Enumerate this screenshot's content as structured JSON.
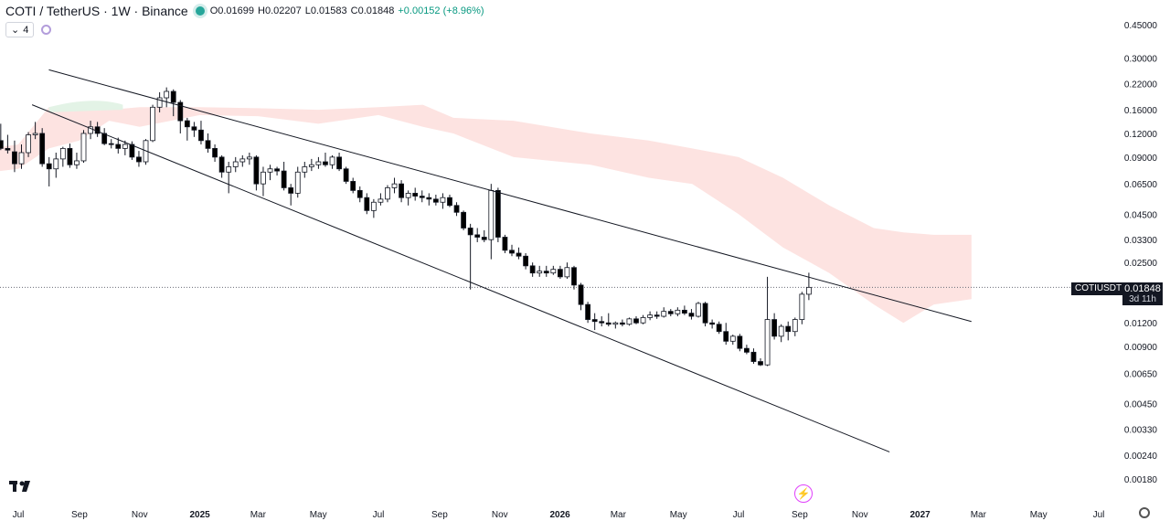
{
  "header": {
    "symbol": "COTI / TetherUS · 1W · Binance",
    "open": "O0.01699",
    "high": "H0.02207",
    "low": "L0.01583",
    "close": "C0.01848",
    "change": "+0.00152 (+8.96%)",
    "indicator_count": "4"
  },
  "price_label": {
    "ticker": "COTIUSDT",
    "price": "0.01848",
    "countdown": "3d 11h"
  },
  "colors": {
    "up_candle": "#ffffff",
    "down_candle": "#000000",
    "cloud_bearish": "#fde3e1",
    "cloud_bullish": "#e3f3e6",
    "trendline": "#131722"
  },
  "icons": [
    "tradingview-logo-icon",
    "indicator-toggle-icon",
    "flash-icon",
    "settings-icon"
  ],
  "chart_data": {
    "type": "candlestick",
    "scale": "log",
    "y_ticks": [
      0.45,
      0.3,
      0.22,
      0.16,
      0.12,
      0.09,
      0.065,
      0.045,
      0.033,
      0.025,
      0.012,
      0.009,
      0.0065,
      0.0045,
      0.0033,
      0.0024,
      0.0018
    ],
    "y_tick_labels": [
      "0.45000",
      "0.30000",
      "0.22000",
      "0.16000",
      "0.12000",
      "0.09000",
      "0.06500",
      "0.04500",
      "0.03300",
      "0.02500",
      "0.01200",
      "0.00900",
      "0.00650",
      "0.00450",
      "0.00330",
      "0.00240",
      "0.00180"
    ],
    "x_labels": [
      {
        "label": "Jul",
        "date": "2024-07-01"
      },
      {
        "label": "Sep",
        "date": "2024-09-01"
      },
      {
        "label": "Nov",
        "date": "2024-11-01"
      },
      {
        "label": "2025",
        "date": "2025-01-01"
      },
      {
        "label": "Mar",
        "date": "2025-03-01"
      },
      {
        "label": "May",
        "date": "2025-05-01"
      },
      {
        "label": "Jul",
        "date": "2025-07-01"
      },
      {
        "label": "Sep",
        "date": "2025-09-01"
      },
      {
        "label": "Nov",
        "date": "2025-11-01"
      },
      {
        "label": "2026",
        "date": "2026-01-01"
      },
      {
        "label": "Mar",
        "date": "2026-03-01"
      },
      {
        "label": "May",
        "date": "2026-05-01"
      },
      {
        "label": "Jul",
        "date": "2026-07-01"
      },
      {
        "label": "Sep",
        "date": "2026-09-01"
      },
      {
        "label": "Nov",
        "date": "2026-11-01"
      },
      {
        "label": "2027",
        "date": "2027-01-01"
      },
      {
        "label": "Mar",
        "date": "2027-03-01"
      },
      {
        "label": "May",
        "date": "2027-05-01"
      },
      {
        "label": "Jul",
        "date": "2027-07-01"
      }
    ],
    "candles": [
      {
        "d": "2024-06-10",
        "o": 0.11,
        "h": 0.135,
        "l": 0.098,
        "c": 0.1
      },
      {
        "d": "2024-06-17",
        "o": 0.1,
        "h": 0.118,
        "l": 0.094,
        "c": 0.098
      },
      {
        "d": "2024-06-24",
        "o": 0.096,
        "h": 0.11,
        "l": 0.075,
        "c": 0.083
      },
      {
        "d": "2024-07-01",
        "o": 0.083,
        "h": 0.105,
        "l": 0.078,
        "c": 0.095
      },
      {
        "d": "2024-07-08",
        "o": 0.095,
        "h": 0.122,
        "l": 0.09,
        "c": 0.118
      },
      {
        "d": "2024-07-15",
        "o": 0.118,
        "h": 0.138,
        "l": 0.112,
        "c": 0.12
      },
      {
        "d": "2024-07-22",
        "o": 0.12,
        "h": 0.128,
        "l": 0.08,
        "c": 0.083
      },
      {
        "d": "2024-07-29",
        "o": 0.083,
        "h": 0.09,
        "l": 0.063,
        "c": 0.078
      },
      {
        "d": "2024-08-05",
        "o": 0.078,
        "h": 0.095,
        "l": 0.07,
        "c": 0.088
      },
      {
        "d": "2024-08-12",
        "o": 0.088,
        "h": 0.102,
        "l": 0.08,
        "c": 0.1
      },
      {
        "d": "2024-08-19",
        "o": 0.1,
        "h": 0.106,
        "l": 0.079,
        "c": 0.082
      },
      {
        "d": "2024-08-26",
        "o": 0.082,
        "h": 0.095,
        "l": 0.078,
        "c": 0.086
      },
      {
        "d": "2024-09-02",
        "o": 0.086,
        "h": 0.125,
        "l": 0.084,
        "c": 0.12
      },
      {
        "d": "2024-09-09",
        "o": 0.12,
        "h": 0.14,
        "l": 0.112,
        "c": 0.13
      },
      {
        "d": "2024-09-16",
        "o": 0.13,
        "h": 0.138,
        "l": 0.115,
        "c": 0.12
      },
      {
        "d": "2024-09-23",
        "o": 0.12,
        "h": 0.128,
        "l": 0.104,
        "c": 0.106
      },
      {
        "d": "2024-09-30",
        "o": 0.106,
        "h": 0.112,
        "l": 0.1,
        "c": 0.105
      },
      {
        "d": "2024-10-07",
        "o": 0.105,
        "h": 0.114,
        "l": 0.094,
        "c": 0.1
      },
      {
        "d": "2024-10-14",
        "o": 0.1,
        "h": 0.11,
        "l": 0.092,
        "c": 0.105
      },
      {
        "d": "2024-10-21",
        "o": 0.105,
        "h": 0.109,
        "l": 0.087,
        "c": 0.09
      },
      {
        "d": "2024-10-28",
        "o": 0.09,
        "h": 0.097,
        "l": 0.08,
        "c": 0.085
      },
      {
        "d": "2024-11-04",
        "o": 0.085,
        "h": 0.112,
        "l": 0.082,
        "c": 0.11
      },
      {
        "d": "2024-11-11",
        "o": 0.11,
        "h": 0.17,
        "l": 0.108,
        "c": 0.165
      },
      {
        "d": "2024-11-18",
        "o": 0.165,
        "h": 0.198,
        "l": 0.155,
        "c": 0.185
      },
      {
        "d": "2024-11-25",
        "o": 0.185,
        "h": 0.21,
        "l": 0.165,
        "c": 0.2
      },
      {
        "d": "2024-12-02",
        "o": 0.2,
        "h": 0.205,
        "l": 0.148,
        "c": 0.175
      },
      {
        "d": "2024-12-09",
        "o": 0.175,
        "h": 0.18,
        "l": 0.12,
        "c": 0.14
      },
      {
        "d": "2024-12-16",
        "o": 0.14,
        "h": 0.145,
        "l": 0.11,
        "c": 0.13
      },
      {
        "d": "2024-12-23",
        "o": 0.13,
        "h": 0.138,
        "l": 0.115,
        "c": 0.125
      },
      {
        "d": "2024-12-30",
        "o": 0.125,
        "h": 0.14,
        "l": 0.105,
        "c": 0.11
      },
      {
        "d": "2025-01-06",
        "o": 0.11,
        "h": 0.12,
        "l": 0.095,
        "c": 0.1
      },
      {
        "d": "2025-01-13",
        "o": 0.1,
        "h": 0.105,
        "l": 0.085,
        "c": 0.09
      },
      {
        "d": "2025-01-20",
        "o": 0.09,
        "h": 0.092,
        "l": 0.07,
        "c": 0.075
      },
      {
        "d": "2025-01-27",
        "o": 0.075,
        "h": 0.085,
        "l": 0.058,
        "c": 0.08
      },
      {
        "d": "2025-02-03",
        "o": 0.08,
        "h": 0.09,
        "l": 0.075,
        "c": 0.085
      },
      {
        "d": "2025-02-10",
        "o": 0.085,
        "h": 0.092,
        "l": 0.08,
        "c": 0.088
      },
      {
        "d": "2025-02-17",
        "o": 0.088,
        "h": 0.095,
        "l": 0.082,
        "c": 0.09
      },
      {
        "d": "2025-02-24",
        "o": 0.09,
        "h": 0.092,
        "l": 0.06,
        "c": 0.065
      },
      {
        "d": "2025-03-03",
        "o": 0.065,
        "h": 0.08,
        "l": 0.056,
        "c": 0.075
      },
      {
        "d": "2025-03-10",
        "o": 0.075,
        "h": 0.082,
        "l": 0.068,
        "c": 0.078
      },
      {
        "d": "2025-03-17",
        "o": 0.078,
        "h": 0.08,
        "l": 0.072,
        "c": 0.076
      },
      {
        "d": "2025-03-24",
        "o": 0.076,
        "h": 0.085,
        "l": 0.06,
        "c": 0.062
      },
      {
        "d": "2025-03-31",
        "o": 0.062,
        "h": 0.065,
        "l": 0.05,
        "c": 0.058
      },
      {
        "d": "2025-04-07",
        "o": 0.058,
        "h": 0.08,
        "l": 0.055,
        "c": 0.075
      },
      {
        "d": "2025-04-14",
        "o": 0.075,
        "h": 0.085,
        "l": 0.07,
        "c": 0.08
      },
      {
        "d": "2025-04-21",
        "o": 0.08,
        "h": 0.088,
        "l": 0.076,
        "c": 0.082
      },
      {
        "d": "2025-04-28",
        "o": 0.082,
        "h": 0.09,
        "l": 0.078,
        "c": 0.085
      },
      {
        "d": "2025-05-05",
        "o": 0.085,
        "h": 0.095,
        "l": 0.08,
        "c": 0.082
      },
      {
        "d": "2025-05-12",
        "o": 0.082,
        "h": 0.092,
        "l": 0.078,
        "c": 0.09
      },
      {
        "d": "2025-05-19",
        "o": 0.09,
        "h": 0.095,
        "l": 0.076,
        "c": 0.078
      },
      {
        "d": "2025-05-26",
        "o": 0.078,
        "h": 0.08,
        "l": 0.065,
        "c": 0.067
      },
      {
        "d": "2025-06-02",
        "o": 0.067,
        "h": 0.07,
        "l": 0.058,
        "c": 0.06
      },
      {
        "d": "2025-06-09",
        "o": 0.06,
        "h": 0.063,
        "l": 0.052,
        "c": 0.055
      },
      {
        "d": "2025-06-16",
        "o": 0.055,
        "h": 0.058,
        "l": 0.045,
        "c": 0.047
      },
      {
        "d": "2025-06-23",
        "o": 0.047,
        "h": 0.054,
        "l": 0.043,
        "c": 0.052
      },
      {
        "d": "2025-06-30",
        "o": 0.052,
        "h": 0.058,
        "l": 0.05,
        "c": 0.054
      },
      {
        "d": "2025-07-07",
        "o": 0.054,
        "h": 0.064,
        "l": 0.052,
        "c": 0.062
      },
      {
        "d": "2025-07-14",
        "o": 0.062,
        "h": 0.07,
        "l": 0.058,
        "c": 0.065
      },
      {
        "d": "2025-07-21",
        "o": 0.065,
        "h": 0.068,
        "l": 0.052,
        "c": 0.055
      },
      {
        "d": "2025-07-28",
        "o": 0.055,
        "h": 0.06,
        "l": 0.05,
        "c": 0.058
      },
      {
        "d": "2025-08-04",
        "o": 0.058,
        "h": 0.062,
        "l": 0.053,
        "c": 0.056
      },
      {
        "d": "2025-08-11",
        "o": 0.056,
        "h": 0.06,
        "l": 0.052,
        "c": 0.055
      },
      {
        "d": "2025-08-18",
        "o": 0.055,
        "h": 0.058,
        "l": 0.05,
        "c": 0.054
      },
      {
        "d": "2025-08-25",
        "o": 0.054,
        "h": 0.057,
        "l": 0.05,
        "c": 0.052
      },
      {
        "d": "2025-09-01",
        "o": 0.052,
        "h": 0.058,
        "l": 0.048,
        "c": 0.055
      },
      {
        "d": "2025-09-08",
        "o": 0.055,
        "h": 0.057,
        "l": 0.049,
        "c": 0.05
      },
      {
        "d": "2025-09-15",
        "o": 0.05,
        "h": 0.052,
        "l": 0.044,
        "c": 0.046
      },
      {
        "d": "2025-09-22",
        "o": 0.046,
        "h": 0.047,
        "l": 0.037,
        "c": 0.038
      },
      {
        "d": "2025-09-29",
        "o": 0.038,
        "h": 0.04,
        "l": 0.018,
        "c": 0.035
      },
      {
        "d": "2025-10-06",
        "o": 0.035,
        "h": 0.038,
        "l": 0.032,
        "c": 0.034
      },
      {
        "d": "2025-10-13",
        "o": 0.034,
        "h": 0.037,
        "l": 0.032,
        "c": 0.033
      },
      {
        "d": "2025-10-20",
        "o": 0.033,
        "h": 0.065,
        "l": 0.026,
        "c": 0.06
      },
      {
        "d": "2025-10-27",
        "o": 0.06,
        "h": 0.062,
        "l": 0.032,
        "c": 0.034
      },
      {
        "d": "2025-11-03",
        "o": 0.034,
        "h": 0.035,
        "l": 0.028,
        "c": 0.029
      },
      {
        "d": "2025-11-10",
        "o": 0.029,
        "h": 0.031,
        "l": 0.027,
        "c": 0.028
      },
      {
        "d": "2025-11-17",
        "o": 0.028,
        "h": 0.03,
        "l": 0.026,
        "c": 0.027
      },
      {
        "d": "2025-11-24",
        "o": 0.027,
        "h": 0.028,
        "l": 0.023,
        "c": 0.024
      },
      {
        "d": "2025-12-01",
        "o": 0.024,
        "h": 0.025,
        "l": 0.021,
        "c": 0.022
      },
      {
        "d": "2025-12-08",
        "o": 0.022,
        "h": 0.024,
        "l": 0.021,
        "c": 0.0225
      },
      {
        "d": "2025-12-15",
        "o": 0.0225,
        "h": 0.024,
        "l": 0.021,
        "c": 0.022
      },
      {
        "d": "2025-12-22",
        "o": 0.022,
        "h": 0.024,
        "l": 0.0215,
        "c": 0.023
      },
      {
        "d": "2025-12-29",
        "o": 0.023,
        "h": 0.024,
        "l": 0.0205,
        "c": 0.021
      },
      {
        "d": "2026-01-05",
        "o": 0.021,
        "h": 0.025,
        "l": 0.0205,
        "c": 0.0235
      },
      {
        "d": "2026-01-12",
        "o": 0.0235,
        "h": 0.024,
        "l": 0.018,
        "c": 0.019
      },
      {
        "d": "2026-01-19",
        "o": 0.019,
        "h": 0.0195,
        "l": 0.014,
        "c": 0.015
      },
      {
        "d": "2026-01-26",
        "o": 0.015,
        "h": 0.0155,
        "l": 0.012,
        "c": 0.0125
      },
      {
        "d": "2026-02-02",
        "o": 0.0125,
        "h": 0.0135,
        "l": 0.011,
        "c": 0.0122
      },
      {
        "d": "2026-02-09",
        "o": 0.0122,
        "h": 0.013,
        "l": 0.0115,
        "c": 0.012
      },
      {
        "d": "2026-02-16",
        "o": 0.012,
        "h": 0.0135,
        "l": 0.0115,
        "c": 0.0118
      },
      {
        "d": "2026-02-23",
        "o": 0.0118,
        "h": 0.0122,
        "l": 0.0112,
        "c": 0.012
      },
      {
        "d": "2026-03-02",
        "o": 0.012,
        "h": 0.0125,
        "l": 0.0115,
        "c": 0.0118
      },
      {
        "d": "2026-03-09",
        "o": 0.0118,
        "h": 0.0128,
        "l": 0.0116,
        "c": 0.0126
      },
      {
        "d": "2026-03-16",
        "o": 0.0126,
        "h": 0.013,
        "l": 0.0118,
        "c": 0.012
      },
      {
        "d": "2026-03-23",
        "o": 0.012,
        "h": 0.0132,
        "l": 0.0118,
        "c": 0.0128
      },
      {
        "d": "2026-03-30",
        "o": 0.0128,
        "h": 0.0138,
        "l": 0.0124,
        "c": 0.0132
      },
      {
        "d": "2026-04-06",
        "o": 0.0132,
        "h": 0.0138,
        "l": 0.0126,
        "c": 0.013
      },
      {
        "d": "2026-04-13",
        "o": 0.013,
        "h": 0.0145,
        "l": 0.0128,
        "c": 0.0138
      },
      {
        "d": "2026-04-20",
        "o": 0.0138,
        "h": 0.0142,
        "l": 0.013,
        "c": 0.0134
      },
      {
        "d": "2026-04-27",
        "o": 0.0134,
        "h": 0.0145,
        "l": 0.013,
        "c": 0.014
      },
      {
        "d": "2026-05-04",
        "o": 0.014,
        "h": 0.0148,
        "l": 0.0132,
        "c": 0.0135
      },
      {
        "d": "2026-05-11",
        "o": 0.0135,
        "h": 0.0142,
        "l": 0.0125,
        "c": 0.013
      },
      {
        "d": "2026-05-18",
        "o": 0.013,
        "h": 0.0155,
        "l": 0.0128,
        "c": 0.0152
      },
      {
        "d": "2026-05-25",
        "o": 0.0152,
        "h": 0.0155,
        "l": 0.0115,
        "c": 0.012
      },
      {
        "d": "2026-06-01",
        "o": 0.012,
        "h": 0.0125,
        "l": 0.0112,
        "c": 0.0118
      },
      {
        "d": "2026-06-08",
        "o": 0.0118,
        "h": 0.0122,
        "l": 0.0105,
        "c": 0.0108
      },
      {
        "d": "2026-06-15",
        "o": 0.0108,
        "h": 0.012,
        "l": 0.0092,
        "c": 0.0096
      },
      {
        "d": "2026-06-22",
        "o": 0.0096,
        "h": 0.0104,
        "l": 0.0092,
        "c": 0.0102
      },
      {
        "d": "2026-06-29",
        "o": 0.0102,
        "h": 0.0105,
        "l": 0.0085,
        "c": 0.0088
      },
      {
        "d": "2026-07-06",
        "o": 0.0088,
        "h": 0.0092,
        "l": 0.0082,
        "c": 0.0084
      },
      {
        "d": "2026-07-13",
        "o": 0.0084,
        "h": 0.0088,
        "l": 0.0073,
        "c": 0.0075
      },
      {
        "d": "2026-07-20",
        "o": 0.0075,
        "h": 0.0078,
        "l": 0.0071,
        "c": 0.0072
      },
      {
        "d": "2026-07-27",
        "o": 0.0072,
        "h": 0.021,
        "l": 0.0071,
        "c": 0.0125
      },
      {
        "d": "2026-08-03",
        "o": 0.0125,
        "h": 0.0135,
        "l": 0.0098,
        "c": 0.0102
      },
      {
        "d": "2026-08-10",
        "o": 0.0102,
        "h": 0.0118,
        "l": 0.0095,
        "c": 0.0115
      },
      {
        "d": "2026-08-17",
        "o": 0.0115,
        "h": 0.0122,
        "l": 0.0097,
        "c": 0.0108
      },
      {
        "d": "2026-08-24",
        "o": 0.0108,
        "h": 0.0128,
        "l": 0.0102,
        "c": 0.0125
      },
      {
        "d": "2026-08-31",
        "o": 0.0125,
        "h": 0.0175,
        "l": 0.0118,
        "c": 0.017
      },
      {
        "d": "2026-09-07",
        "o": 0.01699,
        "h": 0.02207,
        "l": 0.01583,
        "c": 0.01848
      }
    ],
    "cloud": [
      {
        "d": "2024-06-03",
        "a": 0.075,
        "b": 0.1
      },
      {
        "d": "2024-07-01",
        "a": 0.078,
        "b": 0.105
      },
      {
        "d": "2024-08-01",
        "a": 0.1,
        "b": 0.165
      },
      {
        "d": "2024-09-01",
        "a": 0.11,
        "b": 0.175
      },
      {
        "d": "2024-10-01",
        "a": 0.14,
        "b": 0.16
      },
      {
        "d": "2024-11-01",
        "a": 0.13,
        "b": 0.165
      },
      {
        "d": "2025-01-01",
        "a": 0.15,
        "b": 0.165
      },
      {
        "d": "2025-03-01",
        "a": 0.148,
        "b": 0.163
      },
      {
        "d": "2025-05-01",
        "a": 0.135,
        "b": 0.16
      },
      {
        "d": "2025-07-01",
        "a": 0.15,
        "b": 0.165
      },
      {
        "d": "2025-08-15",
        "a": 0.13,
        "b": 0.17
      },
      {
        "d": "2025-09-15",
        "a": 0.12,
        "b": 0.145
      },
      {
        "d": "2025-11-15",
        "a": 0.09,
        "b": 0.14
      },
      {
        "d": "2026-02-01",
        "a": 0.082,
        "b": 0.12
      },
      {
        "d": "2026-04-01",
        "a": 0.07,
        "b": 0.11
      },
      {
        "d": "2026-05-15",
        "a": 0.065,
        "b": 0.1
      },
      {
        "d": "2026-07-01",
        "a": 0.045,
        "b": 0.09
      },
      {
        "d": "2026-08-15",
        "a": 0.03,
        "b": 0.07
      },
      {
        "d": "2026-10-01",
        "a": 0.022,
        "b": 0.05
      },
      {
        "d": "2026-11-15",
        "a": 0.015,
        "b": 0.038
      },
      {
        "d": "2026-12-15",
        "a": 0.012,
        "b": 0.036
      },
      {
        "d": "2027-01-15",
        "a": 0.015,
        "b": 0.035
      },
      {
        "d": "2027-02-22",
        "a": 0.016,
        "b": 0.035
      }
    ],
    "trendlines": [
      {
        "start_date": "2024-08-01",
        "start_price": 0.26,
        "end_date": "2027-02-22",
        "end_price": 0.0122
      },
      {
        "start_date": "2024-07-15",
        "start_price": 0.17,
        "end_date": "2026-12-01",
        "end_price": 0.0025
      }
    ],
    "current_price": 0.01848
  }
}
